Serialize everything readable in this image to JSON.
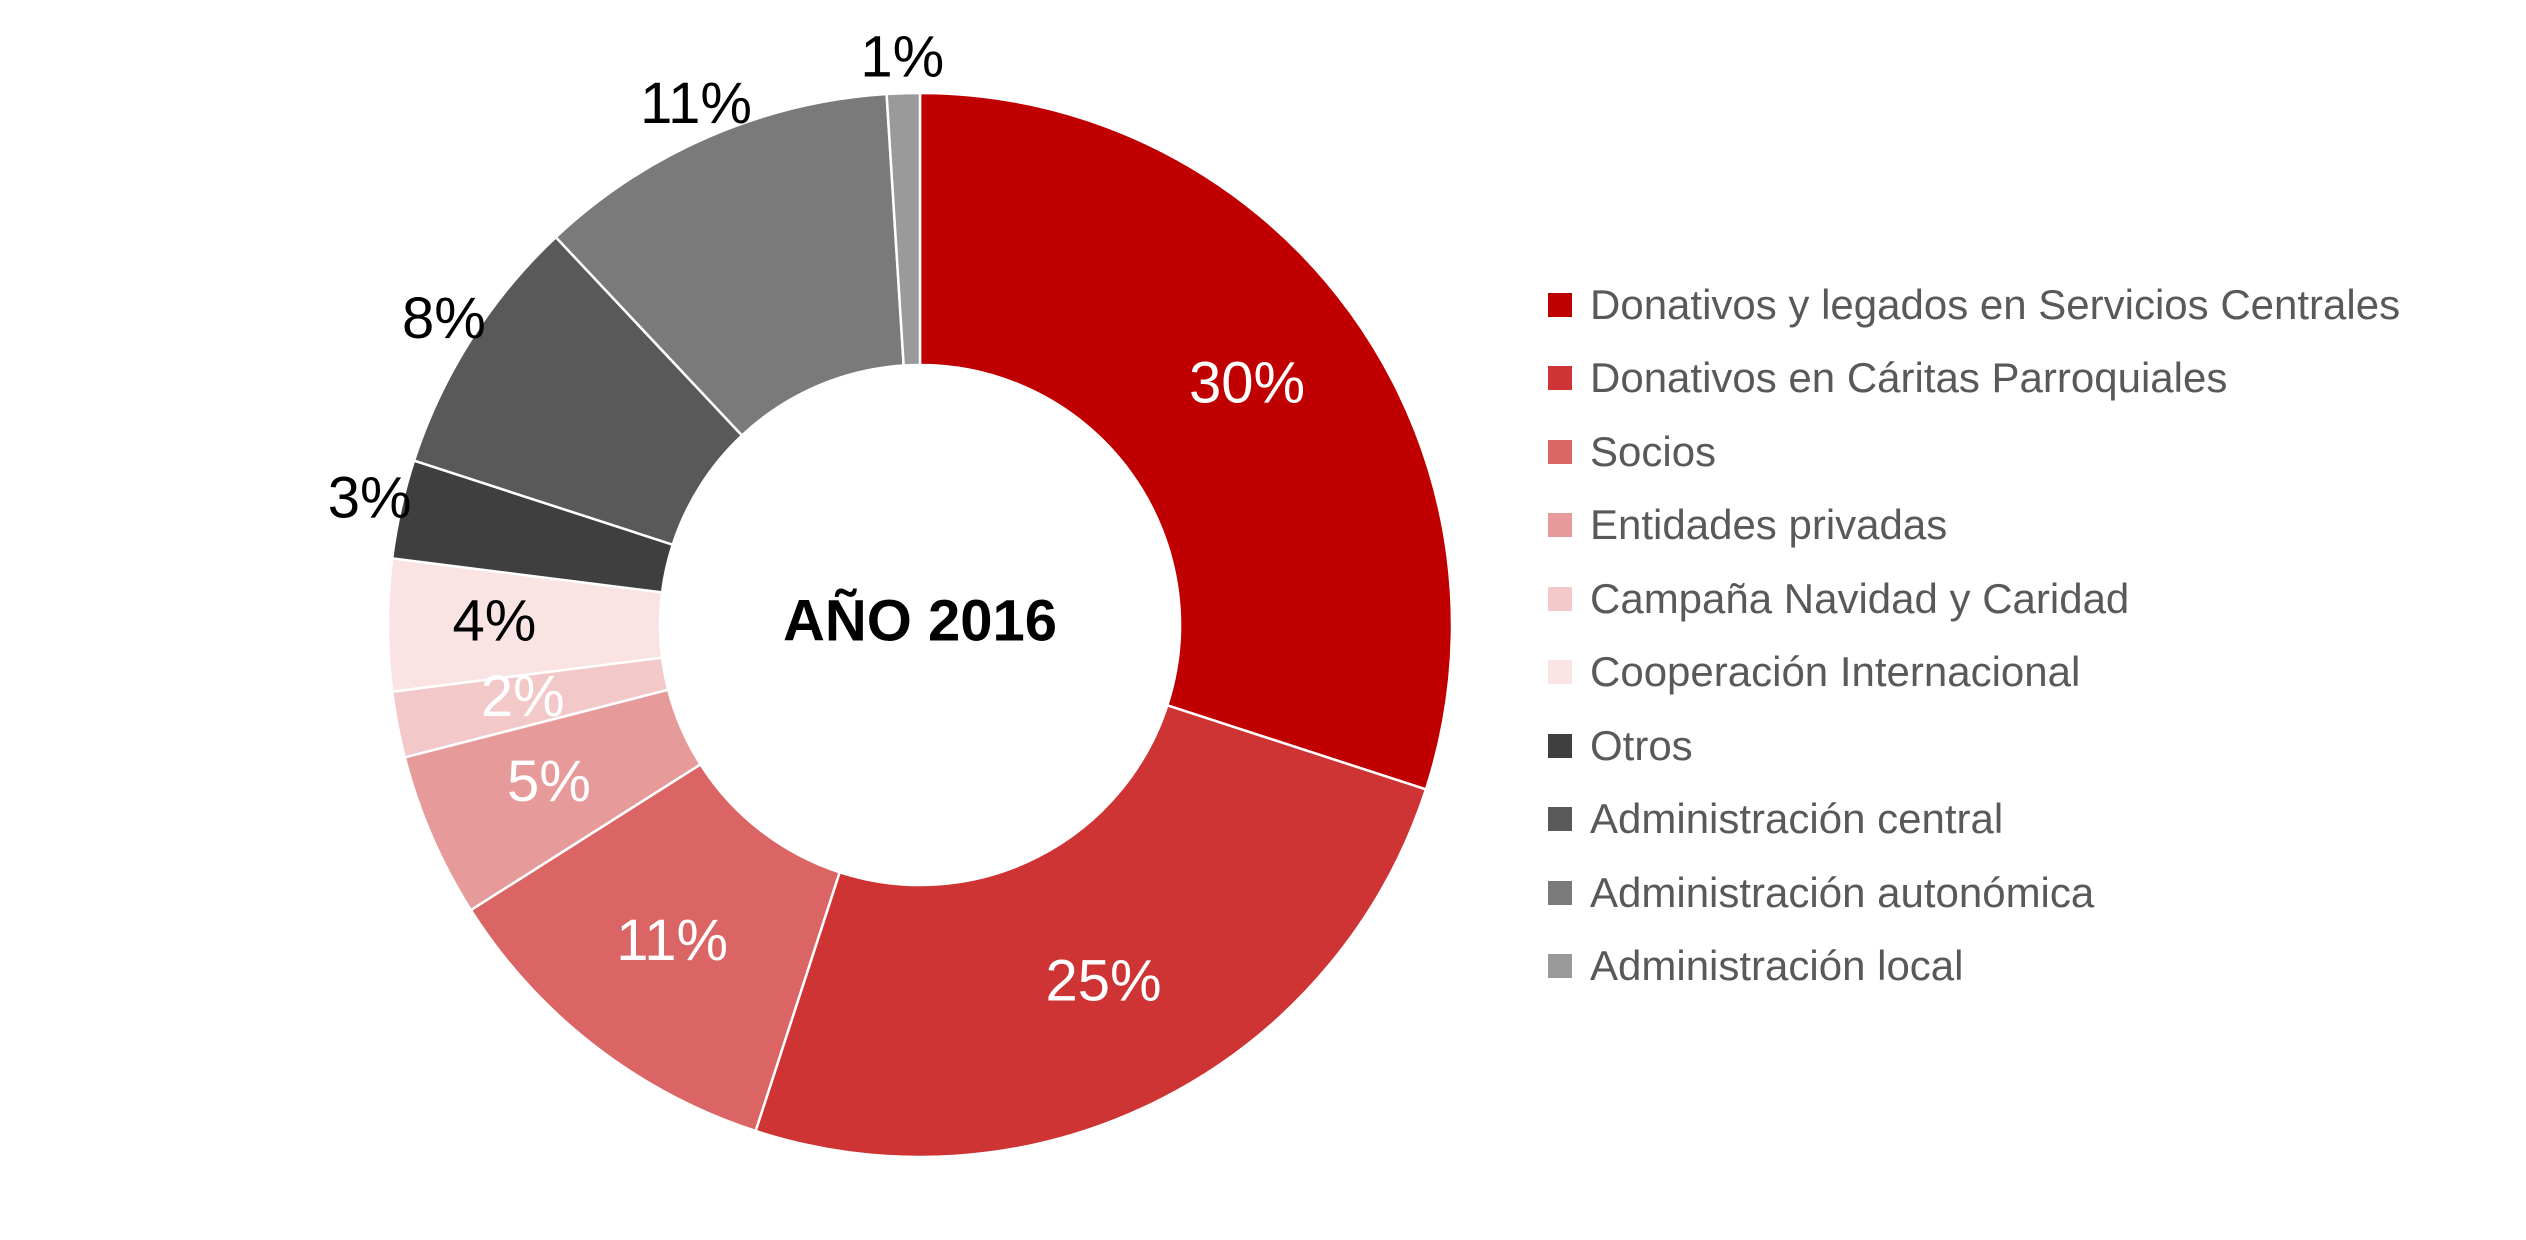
{
  "chart_data": {
    "type": "pie",
    "variant": "donut",
    "center_label": "AÑO 2016",
    "legend_placement": "right",
    "slices": [
      {
        "name": "Donativos y legados en Servicios Centrales",
        "value": 30,
        "label": "30%",
        "color": "#C00000",
        "label_color": "#FFFFFF"
      },
      {
        "name": "Donativos en Cáritas Parroquiales",
        "value": 25,
        "label": "25%",
        "color": "#CE3434",
        "label_color": "#FFFFFF"
      },
      {
        "name": "Socios",
        "value": 11,
        "label": "11%",
        "color": "#DB6565",
        "label_color": "#FFFFFF"
      },
      {
        "name": "Entidades privadas",
        "value": 5,
        "label": "5%",
        "color": "#E79A9A",
        "label_color": "#FFFFFF"
      },
      {
        "name": "Campaña Navidad y Caridad",
        "value": 2,
        "label": "2%",
        "color": "#F2C8C8",
        "label_color": "#FFFFFF"
      },
      {
        "name": "Cooperación Internacional",
        "value": 4,
        "label": "4%",
        "color": "#F9E3E3",
        "label_color": "#000000"
      },
      {
        "name": "Otros",
        "value": 3,
        "label": "3%",
        "color": "#3F3F3F",
        "label_color": "#000000"
      },
      {
        "name": "Administración central",
        "value": 8,
        "label": "8%",
        "color": "#595959",
        "label_color": "#000000"
      },
      {
        "name": "Administración autonómica",
        "value": 11,
        "label": "11%",
        "color": "#7A7A7A",
        "label_color": "#000000"
      },
      {
        "name": "Administración local",
        "value": 1,
        "label": "1%",
        "color": "#9A9A9A",
        "label_color": "#000000"
      }
    ]
  }
}
